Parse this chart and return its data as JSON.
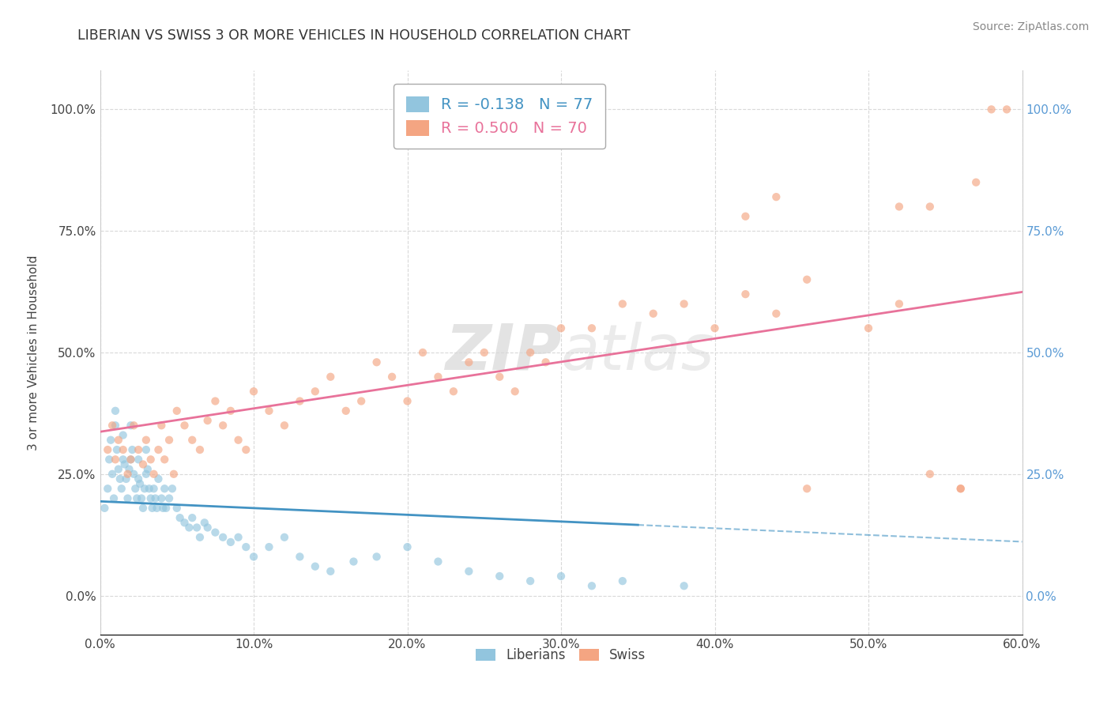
{
  "title": "LIBERIAN VS SWISS 3 OR MORE VEHICLES IN HOUSEHOLD CORRELATION CHART",
  "source": "Source: ZipAtlas.com",
  "xlabel_liberian": "Liberians",
  "xlabel_swiss": "Swiss",
  "ylabel": "3 or more Vehicles in Household",
  "watermark_zip": "ZIP",
  "watermark_atlas": "atlas",
  "liberian_R": -0.138,
  "liberian_N": 77,
  "swiss_R": 0.5,
  "swiss_N": 70,
  "liberian_color": "#92c5de",
  "swiss_color": "#f4a582",
  "liberian_line_color": "#4393c3",
  "swiss_line_color": "#e8729a",
  "right_tick_color": "#5b9bd5",
  "x_min": 0.0,
  "x_max": 0.6,
  "y_min": -0.08,
  "y_max": 1.08,
  "liberian_scatter_x": [
    0.003,
    0.005,
    0.006,
    0.007,
    0.008,
    0.009,
    0.01,
    0.01,
    0.011,
    0.012,
    0.013,
    0.014,
    0.015,
    0.015,
    0.016,
    0.017,
    0.018,
    0.019,
    0.02,
    0.02,
    0.021,
    0.022,
    0.023,
    0.024,
    0.025,
    0.025,
    0.026,
    0.027,
    0.028,
    0.029,
    0.03,
    0.03,
    0.031,
    0.032,
    0.033,
    0.034,
    0.035,
    0.036,
    0.037,
    0.038,
    0.04,
    0.041,
    0.042,
    0.043,
    0.045,
    0.047,
    0.05,
    0.052,
    0.055,
    0.058,
    0.06,
    0.063,
    0.065,
    0.068,
    0.07,
    0.075,
    0.08,
    0.085,
    0.09,
    0.095,
    0.1,
    0.11,
    0.12,
    0.13,
    0.14,
    0.15,
    0.165,
    0.18,
    0.2,
    0.22,
    0.24,
    0.26,
    0.28,
    0.3,
    0.32,
    0.34,
    0.38
  ],
  "liberian_scatter_y": [
    0.18,
    0.22,
    0.28,
    0.32,
    0.25,
    0.2,
    0.35,
    0.38,
    0.3,
    0.26,
    0.24,
    0.22,
    0.28,
    0.33,
    0.27,
    0.24,
    0.2,
    0.26,
    0.28,
    0.35,
    0.3,
    0.25,
    0.22,
    0.2,
    0.24,
    0.28,
    0.23,
    0.2,
    0.18,
    0.22,
    0.25,
    0.3,
    0.26,
    0.22,
    0.2,
    0.18,
    0.22,
    0.2,
    0.18,
    0.24,
    0.2,
    0.18,
    0.22,
    0.18,
    0.2,
    0.22,
    0.18,
    0.16,
    0.15,
    0.14,
    0.16,
    0.14,
    0.12,
    0.15,
    0.14,
    0.13,
    0.12,
    0.11,
    0.12,
    0.1,
    0.08,
    0.1,
    0.12,
    0.08,
    0.06,
    0.05,
    0.07,
    0.08,
    0.1,
    0.07,
    0.05,
    0.04,
    0.03,
    0.04,
    0.02,
    0.03,
    0.02
  ],
  "swiss_scatter_x": [
    0.005,
    0.008,
    0.01,
    0.012,
    0.015,
    0.018,
    0.02,
    0.022,
    0.025,
    0.028,
    0.03,
    0.033,
    0.035,
    0.038,
    0.04,
    0.042,
    0.045,
    0.048,
    0.05,
    0.055,
    0.06,
    0.065,
    0.07,
    0.075,
    0.08,
    0.085,
    0.09,
    0.095,
    0.1,
    0.11,
    0.12,
    0.13,
    0.14,
    0.15,
    0.16,
    0.17,
    0.18,
    0.19,
    0.2,
    0.21,
    0.22,
    0.23,
    0.24,
    0.25,
    0.26,
    0.27,
    0.28,
    0.29,
    0.3,
    0.32,
    0.34,
    0.36,
    0.38,
    0.4,
    0.42,
    0.44,
    0.46,
    0.5,
    0.52,
    0.54,
    0.56,
    0.57,
    0.58,
    0.59,
    0.52,
    0.54,
    0.56,
    0.42,
    0.44,
    0.46
  ],
  "swiss_scatter_y": [
    0.3,
    0.35,
    0.28,
    0.32,
    0.3,
    0.25,
    0.28,
    0.35,
    0.3,
    0.27,
    0.32,
    0.28,
    0.25,
    0.3,
    0.35,
    0.28,
    0.32,
    0.25,
    0.38,
    0.35,
    0.32,
    0.3,
    0.36,
    0.4,
    0.35,
    0.38,
    0.32,
    0.3,
    0.42,
    0.38,
    0.35,
    0.4,
    0.42,
    0.45,
    0.38,
    0.4,
    0.48,
    0.45,
    0.4,
    0.5,
    0.45,
    0.42,
    0.48,
    0.5,
    0.45,
    0.42,
    0.5,
    0.48,
    0.55,
    0.55,
    0.6,
    0.58,
    0.6,
    0.55,
    0.62,
    0.58,
    0.65,
    0.55,
    0.6,
    0.25,
    0.22,
    0.85,
    1.0,
    1.0,
    0.8,
    0.8,
    0.22,
    0.78,
    0.82,
    0.22
  ]
}
